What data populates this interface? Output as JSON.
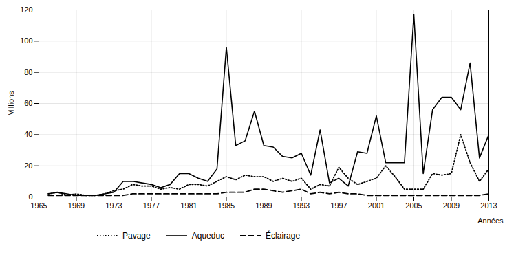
{
  "chart_data": {
    "type": "line",
    "x": [
      1966,
      1967,
      1968,
      1969,
      1970,
      1971,
      1972,
      1973,
      1974,
      1975,
      1976,
      1977,
      1978,
      1979,
      1980,
      1981,
      1982,
      1983,
      1984,
      1985,
      1986,
      1987,
      1988,
      1989,
      1990,
      1991,
      1992,
      1993,
      1994,
      1995,
      1996,
      1997,
      1998,
      1999,
      2000,
      2001,
      2002,
      2003,
      2004,
      2005,
      2006,
      2007,
      2008,
      2009,
      2010,
      2011,
      2012,
      2013
    ],
    "series": [
      {
        "name": "Pavage",
        "color": "#000000",
        "line_style": "dotted",
        "values": [
          2,
          3,
          1,
          2,
          1,
          1,
          2,
          4,
          5,
          8,
          7,
          7,
          5,
          6,
          5,
          8,
          8,
          7,
          10,
          13,
          11,
          14,
          13,
          13,
          10,
          12,
          10,
          12,
          5,
          8,
          7,
          19,
          12,
          8,
          10,
          12,
          20,
          13,
          5,
          5,
          5,
          15,
          14,
          15,
          40,
          22,
          10,
          18
        ]
      },
      {
        "name": "Aqueduc",
        "color": "#000000",
        "line_style": "solid",
        "values": [
          2,
          3,
          2,
          1,
          1,
          1,
          2,
          3,
          10,
          10,
          9,
          8,
          6,
          8,
          15,
          15,
          12,
          10,
          18,
          96,
          33,
          36,
          55,
          33,
          32,
          26,
          25,
          28,
          14,
          43,
          9,
          12,
          7,
          29,
          28,
          52,
          22,
          22,
          22,
          117,
          15,
          56,
          64,
          64,
          56,
          86,
          25,
          40
        ]
      },
      {
        "name": "Éclairage",
        "color": "#000000",
        "line_style": "dashed",
        "values": [
          1,
          1,
          1,
          1,
          1,
          1,
          1,
          1,
          1,
          2,
          2,
          2,
          2,
          2,
          2,
          2,
          2,
          2,
          2,
          3,
          3,
          3,
          5,
          5,
          4,
          3,
          4,
          5,
          2,
          3,
          2,
          3,
          2,
          2,
          1,
          1,
          1,
          1,
          1,
          1,
          1,
          1,
          1,
          1,
          1,
          1,
          1,
          2
        ]
      }
    ],
    "xlabel": "Années",
    "ylabel": "Millions",
    "xlim": [
      1965,
      2013
    ],
    "xticks": [
      1965,
      1969,
      1973,
      1977,
      1981,
      1985,
      1989,
      1993,
      1997,
      2001,
      2005,
      2009,
      2013
    ],
    "ylim": [
      0,
      120
    ],
    "yticks": [
      0,
      20,
      40,
      60,
      80,
      100,
      120
    ],
    "grid": true,
    "legend": "bottom"
  }
}
